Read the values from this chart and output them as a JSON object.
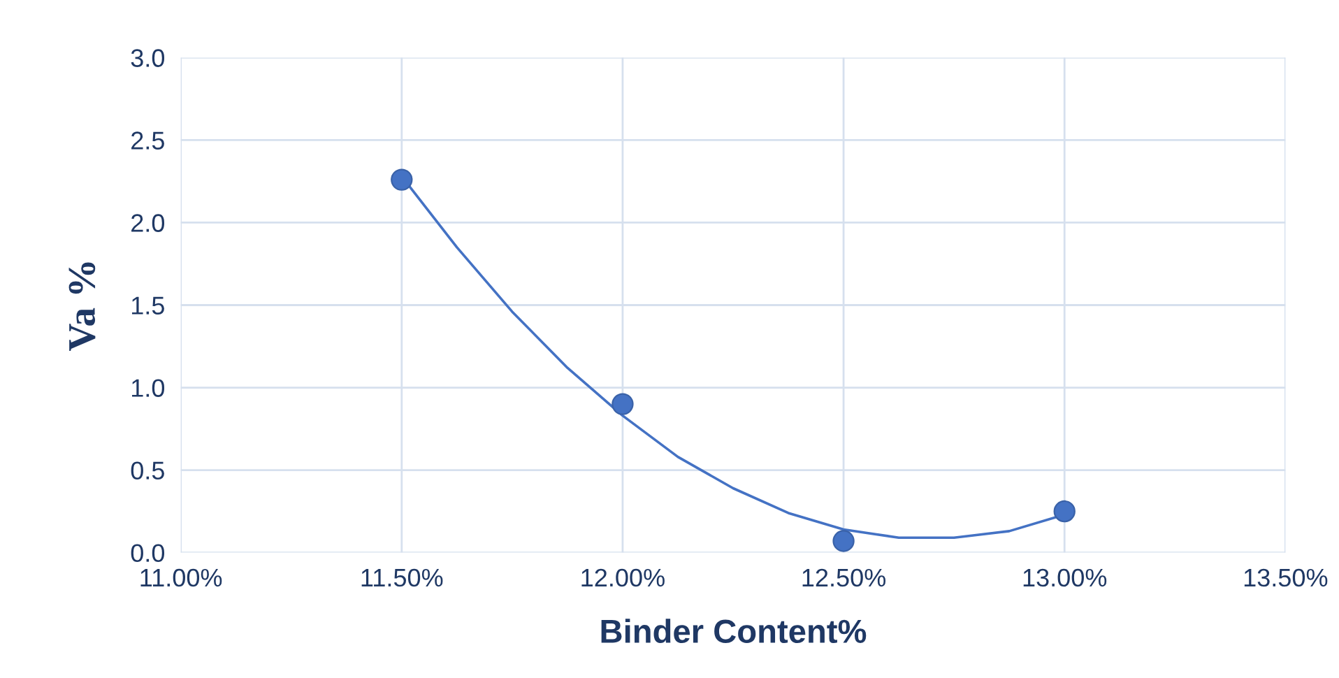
{
  "chart_data": {
    "type": "scatter",
    "xlabel": "Binder Content%",
    "ylabel": "Va %",
    "xlim": [
      11.0,
      13.5
    ],
    "xticks": [
      {
        "value": 11.0,
        "label": "11.00%"
      },
      {
        "value": 11.5,
        "label": "11.50%"
      },
      {
        "value": 12.0,
        "label": "12.00%"
      },
      {
        "value": 12.5,
        "label": "12.50%"
      },
      {
        "value": 13.0,
        "label": "13.00%"
      },
      {
        "value": 13.5,
        "label": "13.50%"
      }
    ],
    "ylim": [
      0,
      3
    ],
    "yticks": [
      {
        "value": 0,
        "label": "0.0"
      },
      {
        "value": 0.5,
        "label": "0.5"
      },
      {
        "value": 1,
        "label": "1.0"
      },
      {
        "value": 1.5,
        "label": "1.5"
      },
      {
        "value": 2,
        "label": "2.0"
      },
      {
        "value": 2.5,
        "label": "2.5"
      },
      {
        "value": 3,
        "label": "3.0"
      }
    ],
    "grid": true,
    "marker": "circle",
    "series": [
      {
        "type": "line",
        "color": "#4472c4",
        "marker": "none",
        "line_style": "solid",
        "x": [
          11.5,
          11.625,
          11.75,
          11.875,
          12.0,
          12.125,
          12.25,
          12.375,
          12.5,
          12.625,
          12.75,
          12.875,
          13.0
        ],
        "values": [
          2.28,
          1.85,
          1.46,
          1.12,
          0.83,
          0.58,
          0.39,
          0.24,
          0.14,
          0.09,
          0.09,
          0.13,
          0.23
        ]
      },
      {
        "color": "#4472c4",
        "x": [
          11.5,
          12.0,
          12.5,
          13.0
        ],
        "values": [
          2.26,
          0.9,
          0.07,
          0.25
        ]
      }
    ]
  }
}
